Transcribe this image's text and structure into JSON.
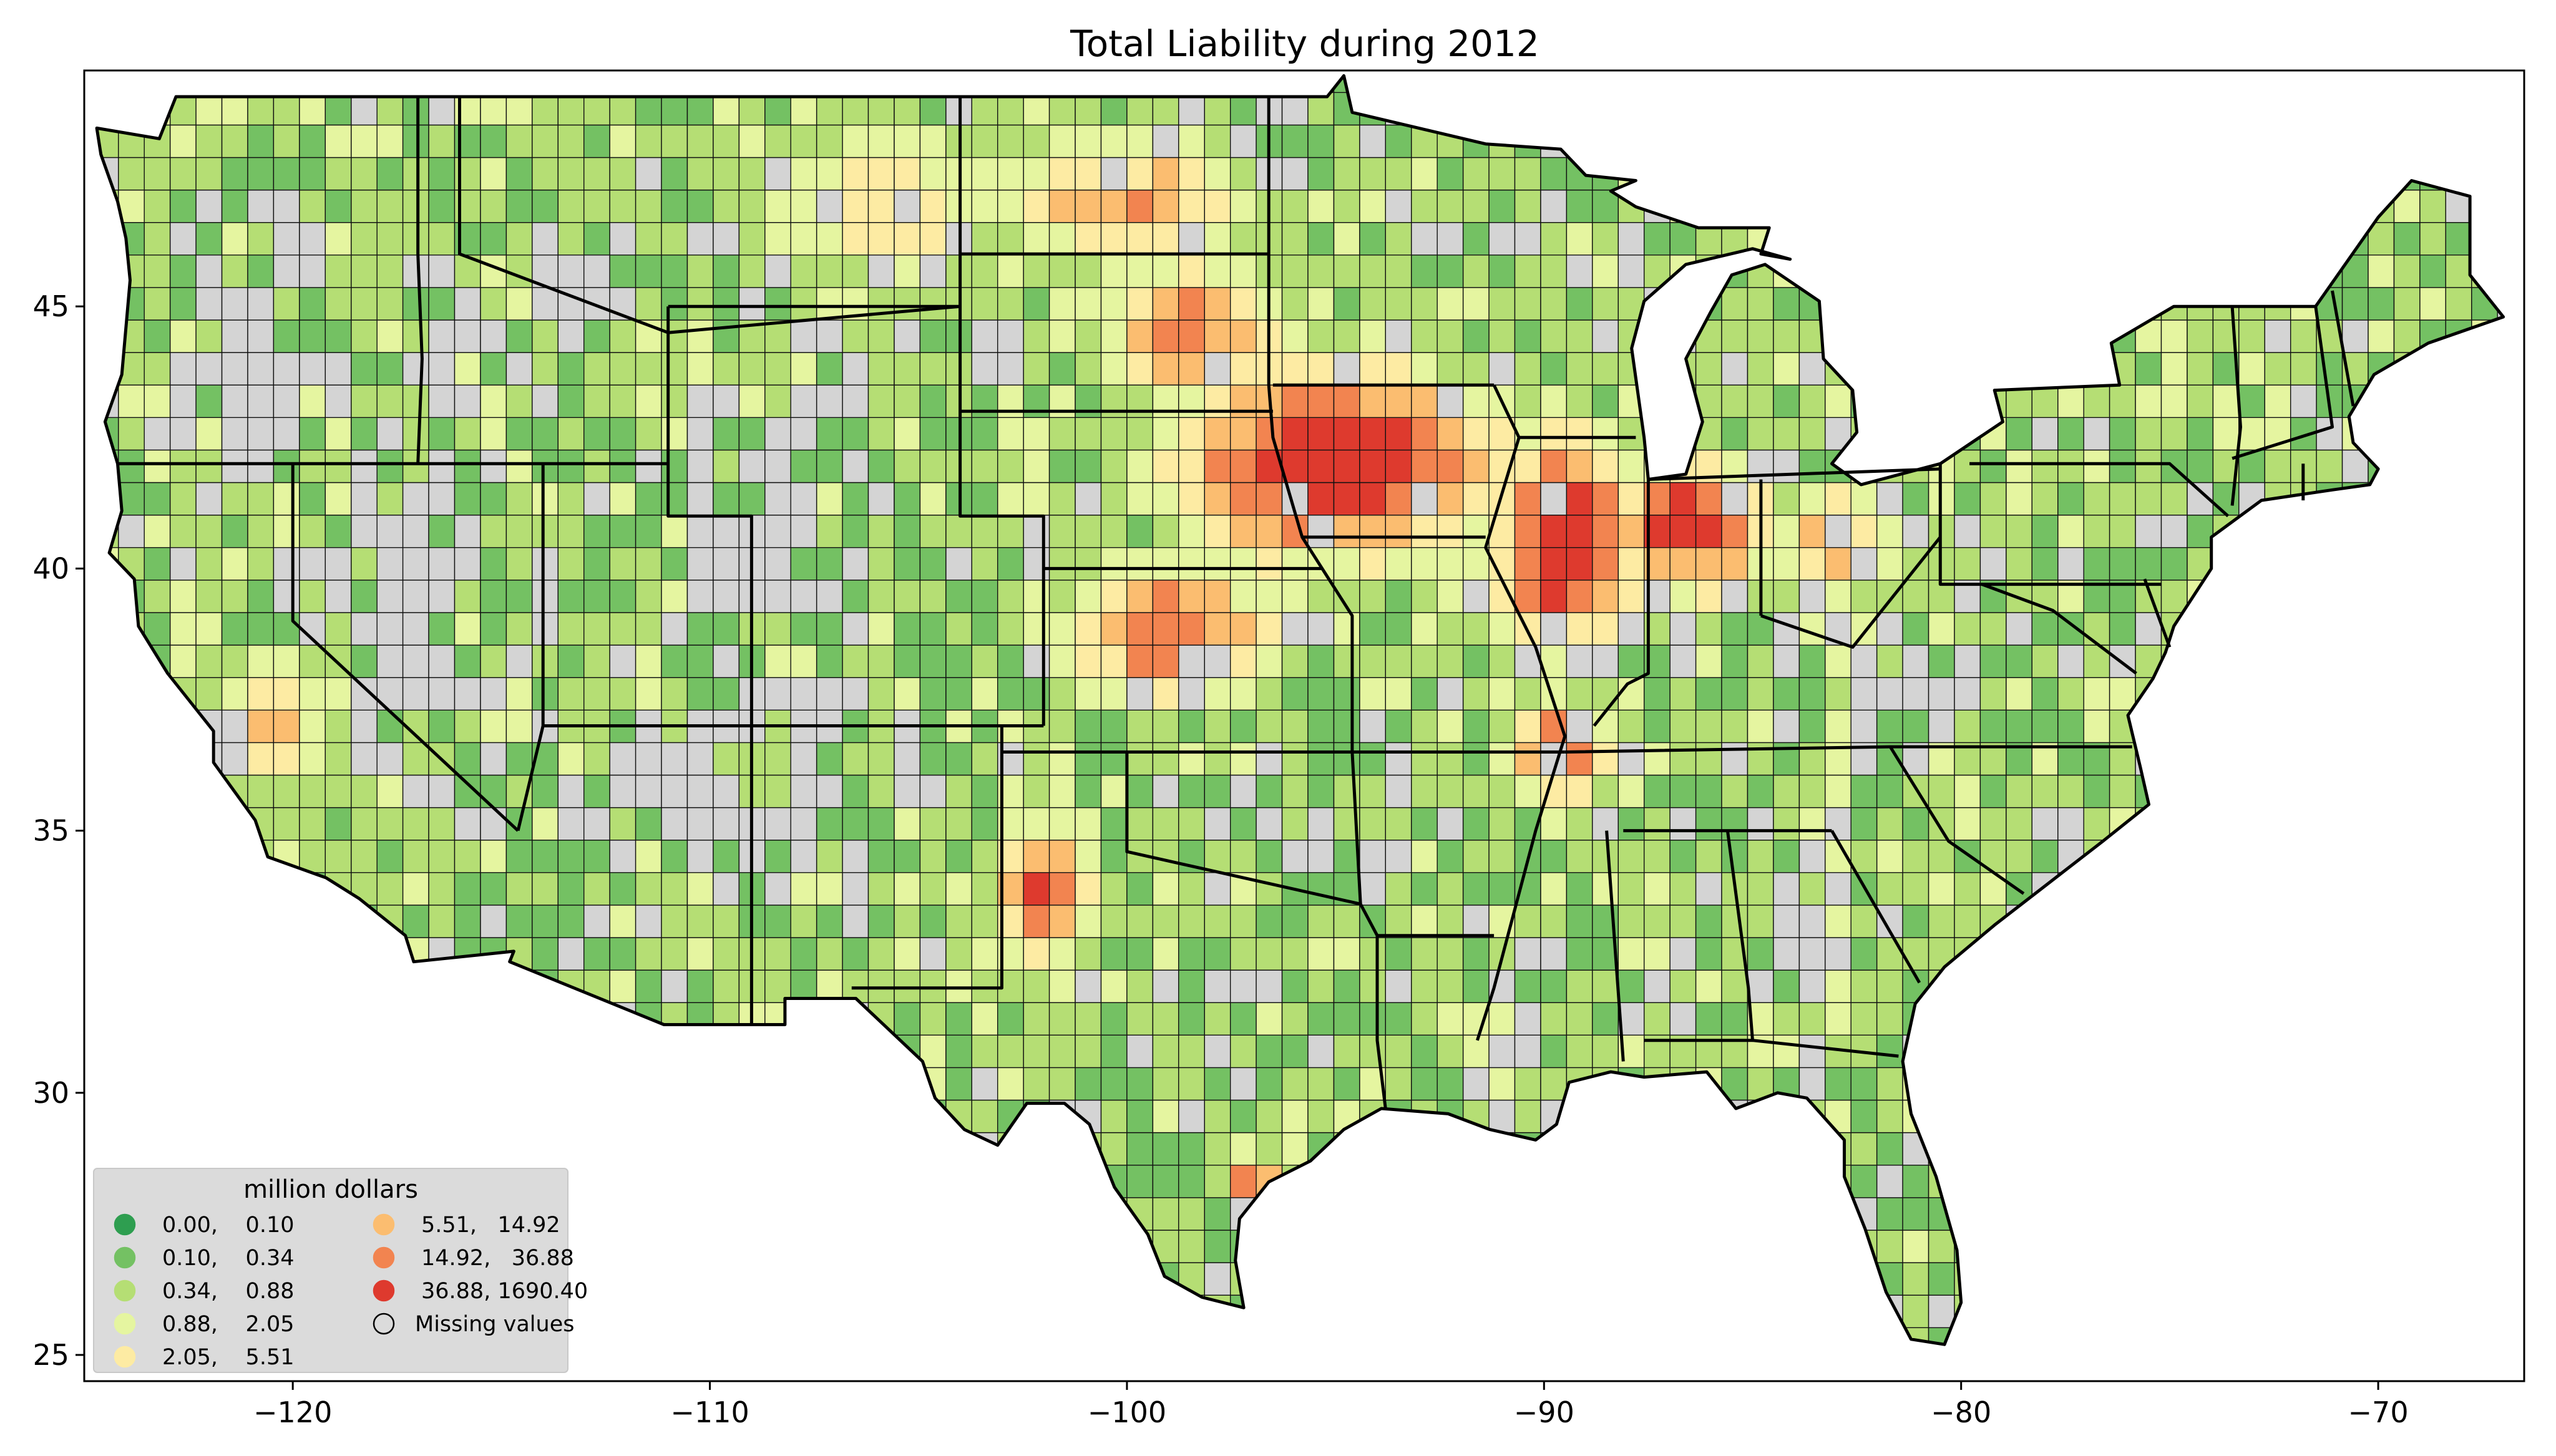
{
  "chart_data": {
    "type": "choropleth",
    "title": "Total Liability during 2012",
    "xlabel": "",
    "ylabel": "",
    "xlim": [
      -125,
      -66.5
    ],
    "ylim": [
      24.5,
      49.5
    ],
    "x_ticks": [
      -120,
      -110,
      -100,
      -90,
      -80,
      -70
    ],
    "y_ticks": [
      25,
      30,
      35,
      40,
      45
    ],
    "x_tick_labels": [
      "−120",
      "−110",
      "−100",
      "−90",
      "−80",
      "−70"
    ],
    "y_tick_labels": [
      "25",
      "30",
      "35",
      "40",
      "45"
    ],
    "grid": false,
    "legend": {
      "title": "million dollars",
      "placement": "lower-left",
      "entries": [
        {
          "label": "0.00,    0.10",
          "color": "#2e9e50"
        },
        {
          "label": "0.10,    0.34",
          "color": "#74c163"
        },
        {
          "label": "0.34,    0.88",
          "color": "#b5de74"
        },
        {
          "label": "0.88,    2.05",
          "color": "#e5f5a0"
        },
        {
          "label": "2.05,    5.51",
          "color": "#fdeba3"
        },
        {
          "label": "5.51,   14.92",
          "color": "#fbbd70"
        },
        {
          "label": "14.92,   36.88",
          "color": "#f28450"
        },
        {
          "label": "36.88, 1690.40",
          "color": "#de3a2e"
        },
        {
          "label": "Missing values",
          "color": "none"
        }
      ]
    },
    "missing_color": "#d4d4d4"
  }
}
